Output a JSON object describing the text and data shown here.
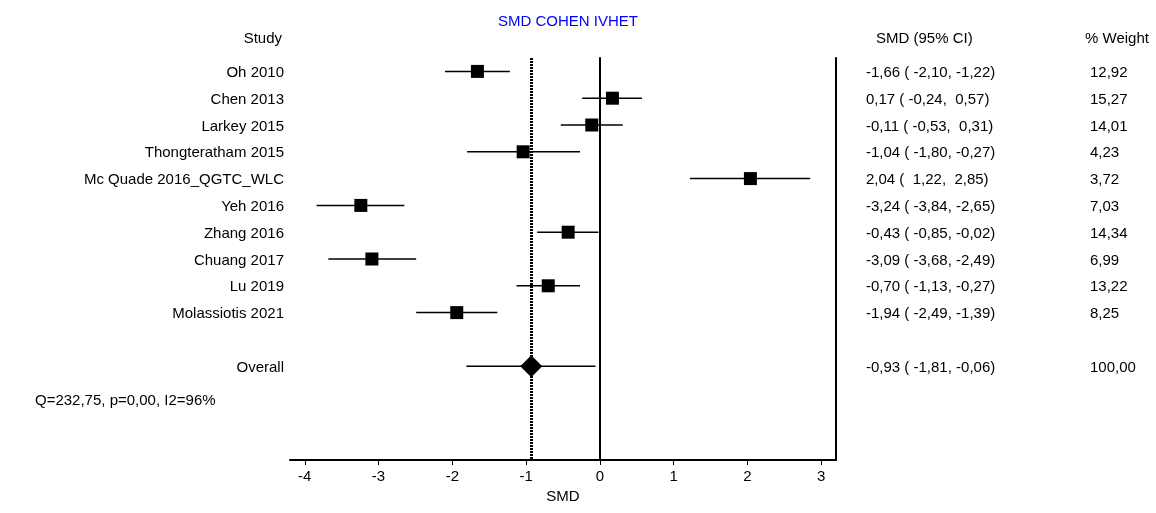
{
  "chart_data": {
    "type": "scatter",
    "orientation": "horizontal",
    "title": "SMD COHEN IVHET",
    "xlabel": "SMD",
    "marker": "square",
    "categories": [
      "Oh 2010",
      "Chen 2013",
      "Larkey 2015",
      "Thongteratham 2015",
      "Mc Quade 2016_QGTC_WLC",
      "Yeh 2016",
      "Zhang 2016",
      "Chuang 2017",
      "Lu 2019",
      "Molassiotis 2021",
      null,
      "Overall",
      null,
      null,
      null
    ],
    "series": [
      {
        "color": "#000000",
        "values": [
          -1.66,
          0.17,
          -0.11,
          -1.04,
          2.04,
          -3.24,
          -0.43,
          -3.09,
          -0.7,
          -1.94,
          null,
          null,
          null,
          null,
          null
        ],
        "errors": [
          [
            -2.1,
            -1.22
          ],
          [
            -0.24,
            0.57
          ],
          [
            -0.53,
            0.31
          ],
          [
            -1.8,
            -0.27
          ],
          [
            1.22,
            2.85
          ],
          [
            -3.84,
            -2.65
          ],
          [
            -0.85,
            -0.02
          ],
          [
            -3.68,
            -2.49
          ],
          [
            -1.13,
            -0.27
          ],
          [
            -2.49,
            -1.39
          ],
          null,
          null,
          null,
          null,
          null
        ],
        "value_labels": [
          "-1,66 ( -2,10, -1,22)\t12,92",
          "0,17 ( -0,24,  0,57)\t15,27",
          "-0,11 ( -0,53,  0,31)\t14,01",
          "-1,04 ( -1,80, -0,27)\t4,23",
          "2,04 (  1,22,  2,85)\t3,72",
          "-3,24 ( -3,84, -2,65)\t7,03",
          "-0,43 ( -0,85, -0,02)\t14,34",
          "-3,09 ( -3,68, -2,49)\t6,99",
          "-0,70 ( -1,13, -0,27)\t13,22",
          "-1,94 ( -2,49, -1,39)\t8,25",
          null,
          null,
          null,
          null,
          null
        ]
      },
      {
        "color": "#000000",
        "marker": "diamond",
        "values": [
          null,
          null,
          null,
          null,
          null,
          null,
          null,
          null,
          null,
          null,
          null,
          -0.93,
          null,
          null,
          null
        ],
        "errors": [
          null,
          null,
          null,
          null,
          null,
          null,
          null,
          null,
          null,
          null,
          null,
          [
            -1.81,
            -0.06
          ],
          null,
          null,
          null
        ],
        "value_labels": [
          null,
          null,
          null,
          null,
          null,
          null,
          null,
          null,
          null,
          null,
          null,
          "-0,93 ( -1,81, -0,06)\t100,00",
          null,
          null,
          null
        ]
      }
    ],
    "xlim": [
      -4.2,
      3.2
    ],
    "xticks": [
      -4,
      -3,
      -2,
      -1,
      0,
      1,
      2,
      3
    ],
    "ref_lines": [
      {
        "axis": "x",
        "value": 0,
        "line_style": "solid",
        "color": "#000000"
      },
      {
        "axis": "x",
        "value": -0.93,
        "line_style": "dotted",
        "color": "#000000"
      }
    ],
    "annotations": [
      "Study",
      "SMD (95% CI)",
      "% Weight",
      "Q=232,75, p=0,00, I2=96%"
    ],
    "grid": false
  }
}
